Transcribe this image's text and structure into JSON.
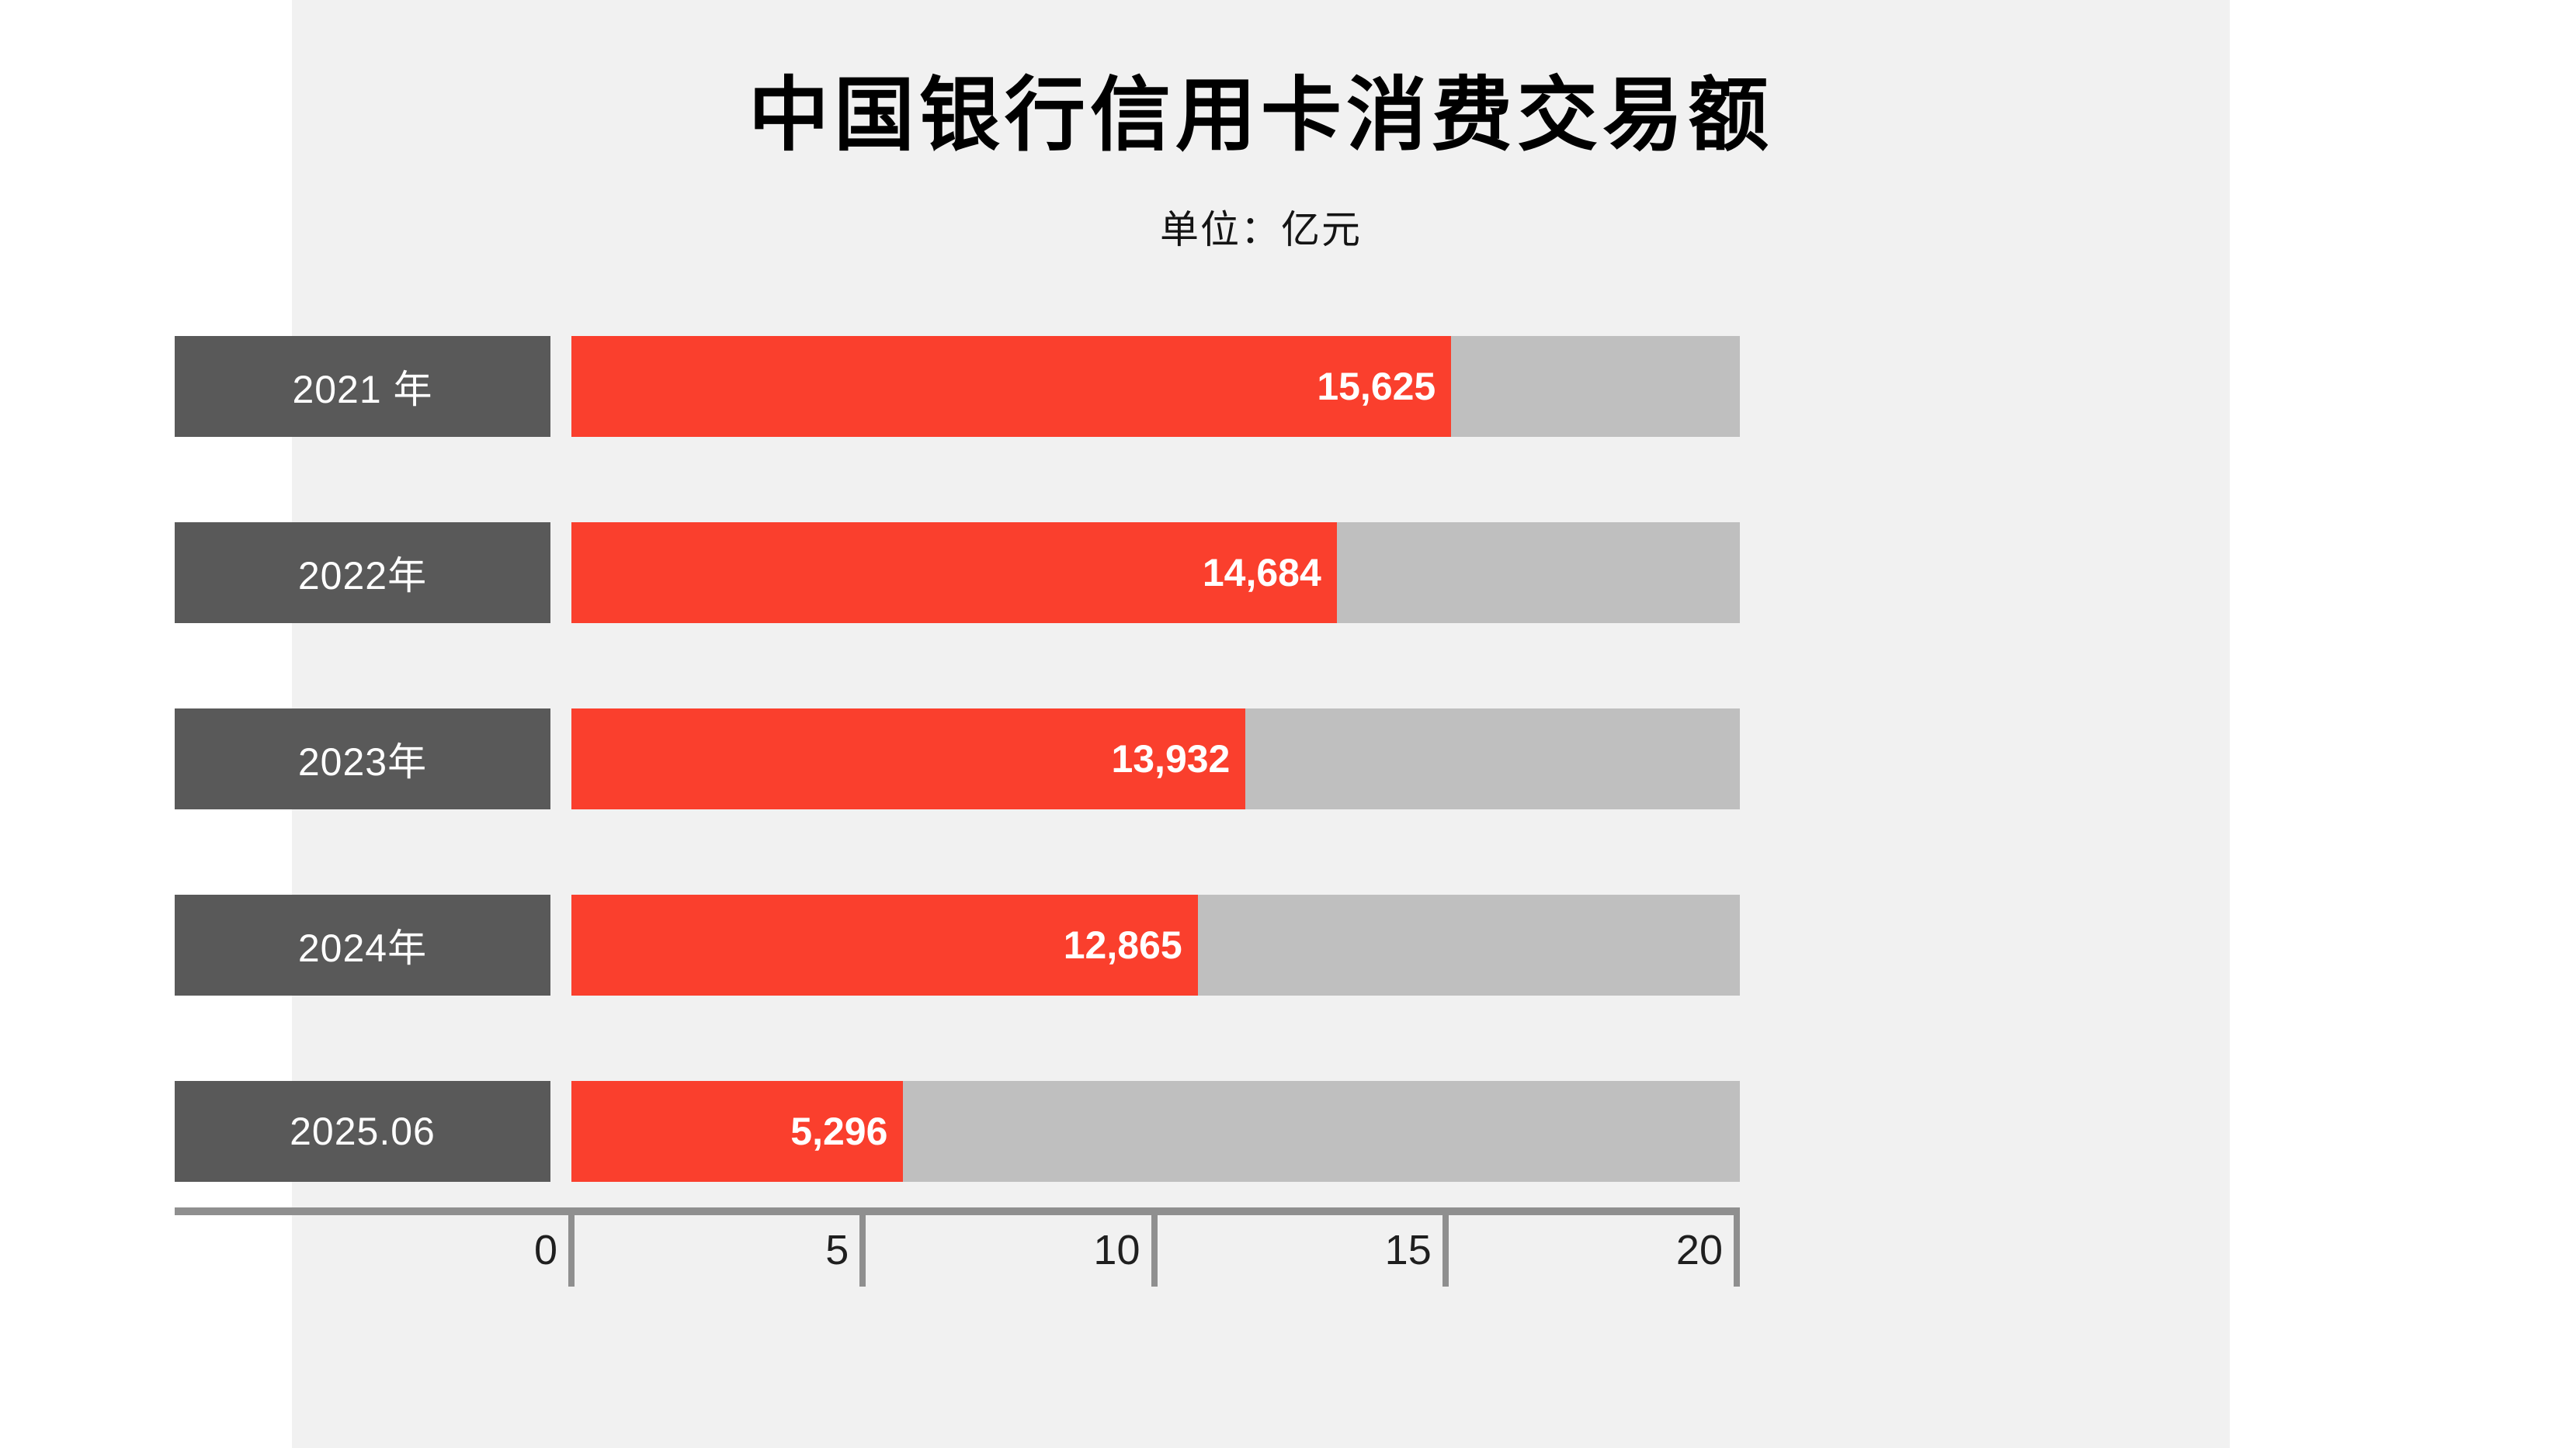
{
  "page": {
    "background": "#FFFFFF",
    "panel_background": "#F1F1F1"
  },
  "header": {
    "title": "中国银行信用卡消费交易额",
    "subtitle": "单位：亿元"
  },
  "chart_data": {
    "type": "bar",
    "orientation": "horizontal",
    "title": "中国银行信用卡消费交易额",
    "subtitle_unit_label": "单位：亿元",
    "unit": "亿元",
    "categories": [
      "2021 年",
      "2022年",
      "2023年",
      "2024年",
      "2025.06"
    ],
    "values": [
      15625,
      14684,
      13932,
      12865,
      5296
    ],
    "value_labels": [
      "15,625",
      "14,684",
      "13,932",
      "12,865",
      "5,296"
    ],
    "xlim": [
      0,
      20000
    ],
    "x_ticks": [
      0,
      5,
      10,
      15,
      20
    ],
    "x_tick_scale": 1000,
    "grid": false,
    "legend": false,
    "tick_labels_position": "left-of-tick",
    "bar_width_pct_hints": [
      75.3,
      65.5,
      57.7,
      53.6,
      28.4
    ],
    "colors": {
      "bar_fill": "#FA3F2D",
      "bar_track": "#BFBFBF",
      "category_box": "#595959",
      "category_text": "#FFFFFF",
      "value_text": "#FFFFFF",
      "axis": "#8F8F8F",
      "tick_label": "#1F1F1F",
      "panel_background": "#F1F1F1",
      "page_background": "#FFFFFF",
      "title_text": "#000000"
    }
  }
}
